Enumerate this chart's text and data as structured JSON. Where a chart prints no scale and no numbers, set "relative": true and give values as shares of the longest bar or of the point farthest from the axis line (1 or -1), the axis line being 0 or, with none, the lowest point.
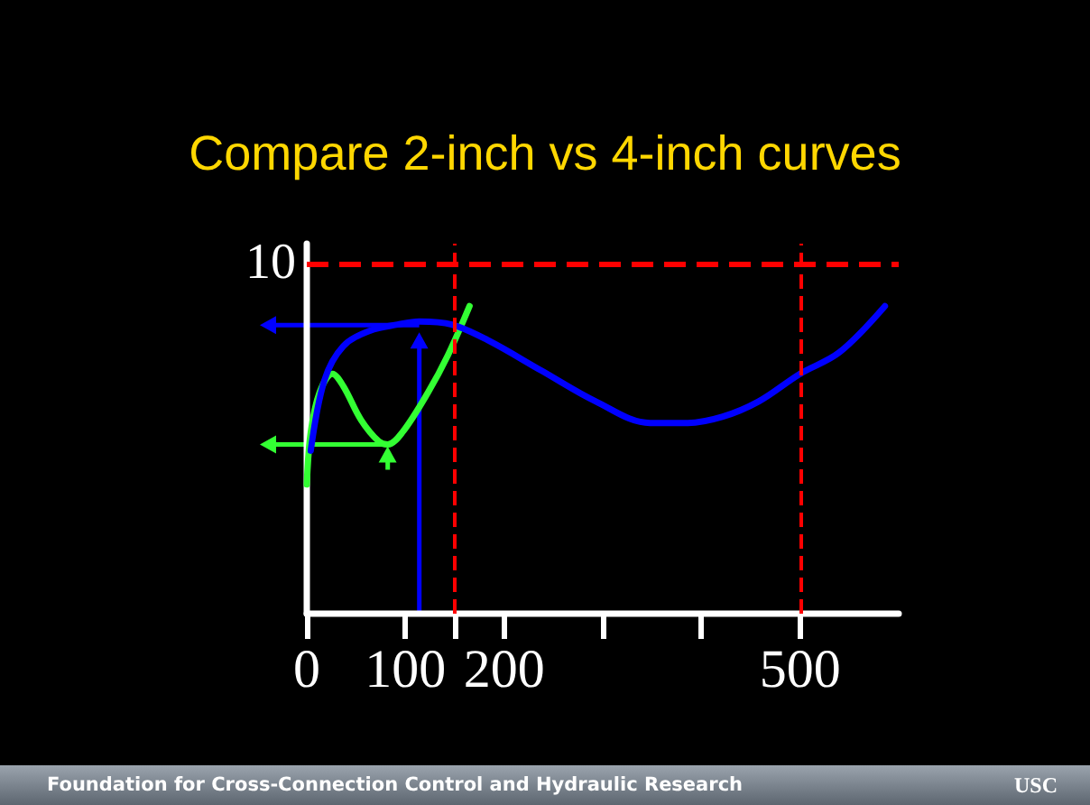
{
  "chart_data": {
    "type": "line",
    "title": "Compare 2-inch vs 4-inch curves",
    "marker": "none",
    "relative": true,
    "xlim": [
      0,
      600
    ],
    "xticks": [
      0,
      100,
      {
        "value": 150,
        "label": null
      },
      200,
      {
        "value": 300,
        "label": null
      },
      {
        "value": 400,
        "label": null
      },
      500
    ],
    "series": [
      {
        "color": "#33ff33",
        "x": [
          0,
          4,
          13,
          26,
          37,
          55,
          73,
          82,
          97,
          123,
          143,
          165
        ],
        "values": [
          0.42,
          0.59,
          0.72,
          0.78,
          0.74,
          0.63,
          0.56,
          0.55,
          0.59,
          0.72,
          0.84,
          1.0
        ]
      },
      {
        "color": "#0000ff",
        "x": [
          4,
          18,
          37,
          64,
          92,
          114,
          147,
          183,
          238,
          293,
          348,
          385,
          421,
          458,
          500,
          540,
          586
        ],
        "values": [
          0.53,
          0.76,
          0.87,
          0.92,
          0.94,
          0.95,
          0.94,
          0.89,
          0.79,
          0.69,
          0.62,
          0.62,
          0.64,
          0.69,
          0.78,
          0.85,
          1.0
        ]
      }
    ],
    "ref_lines": [
      {
        "axis": "y",
        "value": 1.135,
        "color": "#ff0000",
        "line_style": "dashed"
      },
      {
        "axis": "x",
        "value": 150,
        "color": "#ff0000",
        "line_style": "dashed"
      },
      {
        "axis": "x",
        "value": 500,
        "color": "#ff0000",
        "line_style": "dashed"
      }
    ],
    "annotations": [
      "10",
      "Foundation for Cross-Connection Control and Hydraulic Research",
      "USC"
    ]
  }
}
